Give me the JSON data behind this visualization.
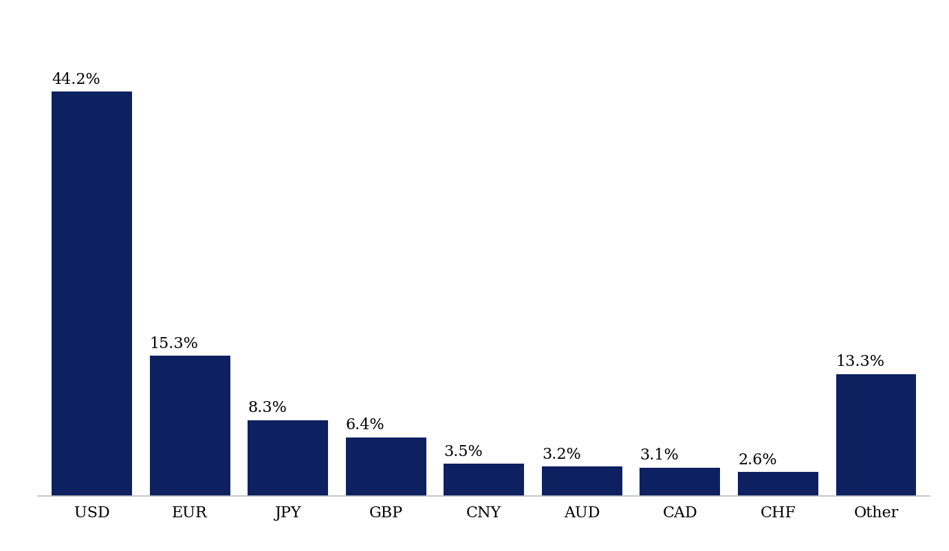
{
  "categories": [
    "USD",
    "EUR",
    "JPY",
    "GBP",
    "CNY",
    "AUD",
    "CAD",
    "CHF",
    "Other"
  ],
  "values": [
    44.2,
    15.3,
    8.3,
    6.4,
    3.5,
    3.2,
    3.1,
    2.6,
    13.3
  ],
  "labels": [
    "44.2%",
    "15.3%",
    "8.3%",
    "6.4%",
    "3.5%",
    "3.2%",
    "3.1%",
    "2.6%",
    "13.3%"
  ],
  "bar_color": "#0d2060",
  "background_color": "#ffffff",
  "ylim": [
    0,
    50
  ],
  "label_fontsize": 16,
  "tick_fontsize": 16,
  "bar_width": 0.82
}
